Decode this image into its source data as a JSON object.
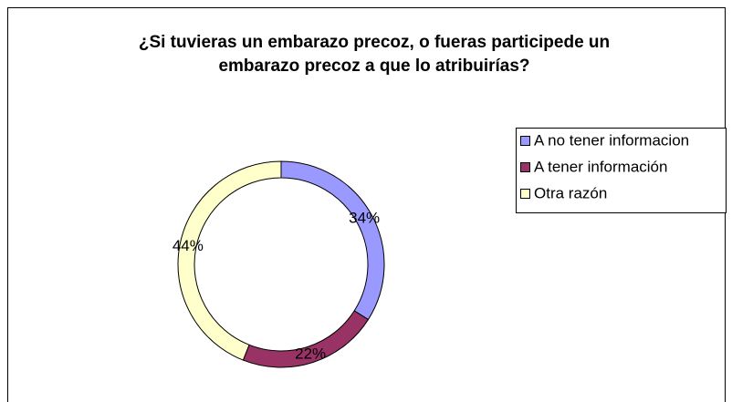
{
  "chart_data": {
    "type": "donut",
    "title": "¿Si tuvieras un embarazo precoz, o fueras participede un embarazo precoz a que lo atribuirías?",
    "categories": [
      "A no tener informacion",
      "A tener información",
      "Otra razón"
    ],
    "values": [
      34,
      22,
      44
    ],
    "value_labels": [
      "34%",
      "22%",
      "44%"
    ],
    "colors": [
      "#9999ff",
      "#993366",
      "#ffffcc"
    ],
    "legend": "right"
  }
}
